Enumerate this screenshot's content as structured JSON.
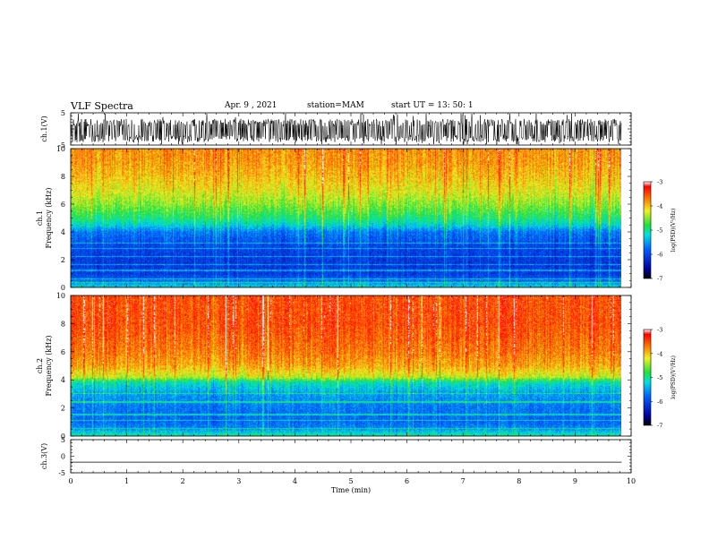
{
  "header": {
    "title": "VLF Spectra",
    "date": "Apr. 9  , 2021",
    "station": "station=MAM",
    "start": "start  UT  =   13: 50: 1"
  },
  "chart_data": [
    {
      "type": "line",
      "panel": "ch1-waveform",
      "ylabel": "ch.1(V)",
      "ylim": [
        -5,
        5
      ],
      "yticks": [
        "5",
        "-5"
      ],
      "xlim": [
        0,
        10
      ],
      "trace": {
        "center": -0.5,
        "amplitude": 3.6,
        "end_time": 9.83
      }
    },
    {
      "type": "heatmap",
      "panel": "ch1-spectrogram",
      "ylabel_line1": "ch.1",
      "ylabel_line2": "Frequency (kHz)",
      "ylim": [
        0,
        10
      ],
      "yticks": [
        "0",
        "2",
        "4",
        "6",
        "8",
        "10"
      ],
      "xlim": [
        0,
        10
      ],
      "end_time": 9.83,
      "profile_freq_khz": [
        0,
        0.5,
        1,
        2,
        3,
        4,
        4.5,
        5,
        6,
        7,
        8,
        9,
        10
      ],
      "profile_log_psd": [
        -5.2,
        -5.8,
        -6.1,
        -6.1,
        -6.0,
        -5.7,
        -5.2,
        -4.9,
        -4.5,
        -4.2,
        -4.0,
        -3.85,
        -3.8
      ],
      "colorbar": {
        "label": "log(PSD)(V²/Hz)",
        "range": [
          -7,
          -3
        ],
        "ticks": [
          "-3",
          "-4",
          "-5",
          "-6",
          "-7"
        ]
      }
    },
    {
      "type": "heatmap",
      "panel": "ch2-spectrogram",
      "ylabel_line1": "ch.2",
      "ylabel_line2": "Frequency (kHz)",
      "ylim": [
        0,
        10
      ],
      "yticks": [
        "0",
        "2",
        "4",
        "6",
        "8",
        "10"
      ],
      "xlim": [
        0,
        10
      ],
      "end_time": 9.83,
      "profile_freq_khz": [
        0,
        0.5,
        1,
        2,
        3,
        3.8,
        4.2,
        5,
        6,
        7,
        8,
        9,
        10
      ],
      "profile_log_psd": [
        -5.0,
        -5.6,
        -5.8,
        -5.7,
        -5.5,
        -5.1,
        -4.3,
        -3.9,
        -3.7,
        -3.6,
        -3.5,
        -3.5,
        -3.5
      ],
      "colorbar": {
        "label": "log(PSD)(V²/Hz)",
        "range": [
          -7,
          -3
        ],
        "ticks": [
          "-3",
          "-4",
          "-5",
          "-6",
          "-7"
        ]
      }
    },
    {
      "type": "line",
      "panel": "ch3-waveform",
      "ylabel": "ch.3(V)",
      "ylim": [
        -5,
        5
      ],
      "yticks": [
        "5",
        "0",
        "-5"
      ],
      "xlim": [
        0,
        10
      ],
      "trace": {
        "center": -1.8,
        "amplitude": 0,
        "end_time": 9.83
      },
      "xlabel": "Time  (min)",
      "xticks": [
        "0",
        "1",
        "2",
        "3",
        "4",
        "5",
        "6",
        "7",
        "8",
        "9",
        "10"
      ]
    }
  ]
}
